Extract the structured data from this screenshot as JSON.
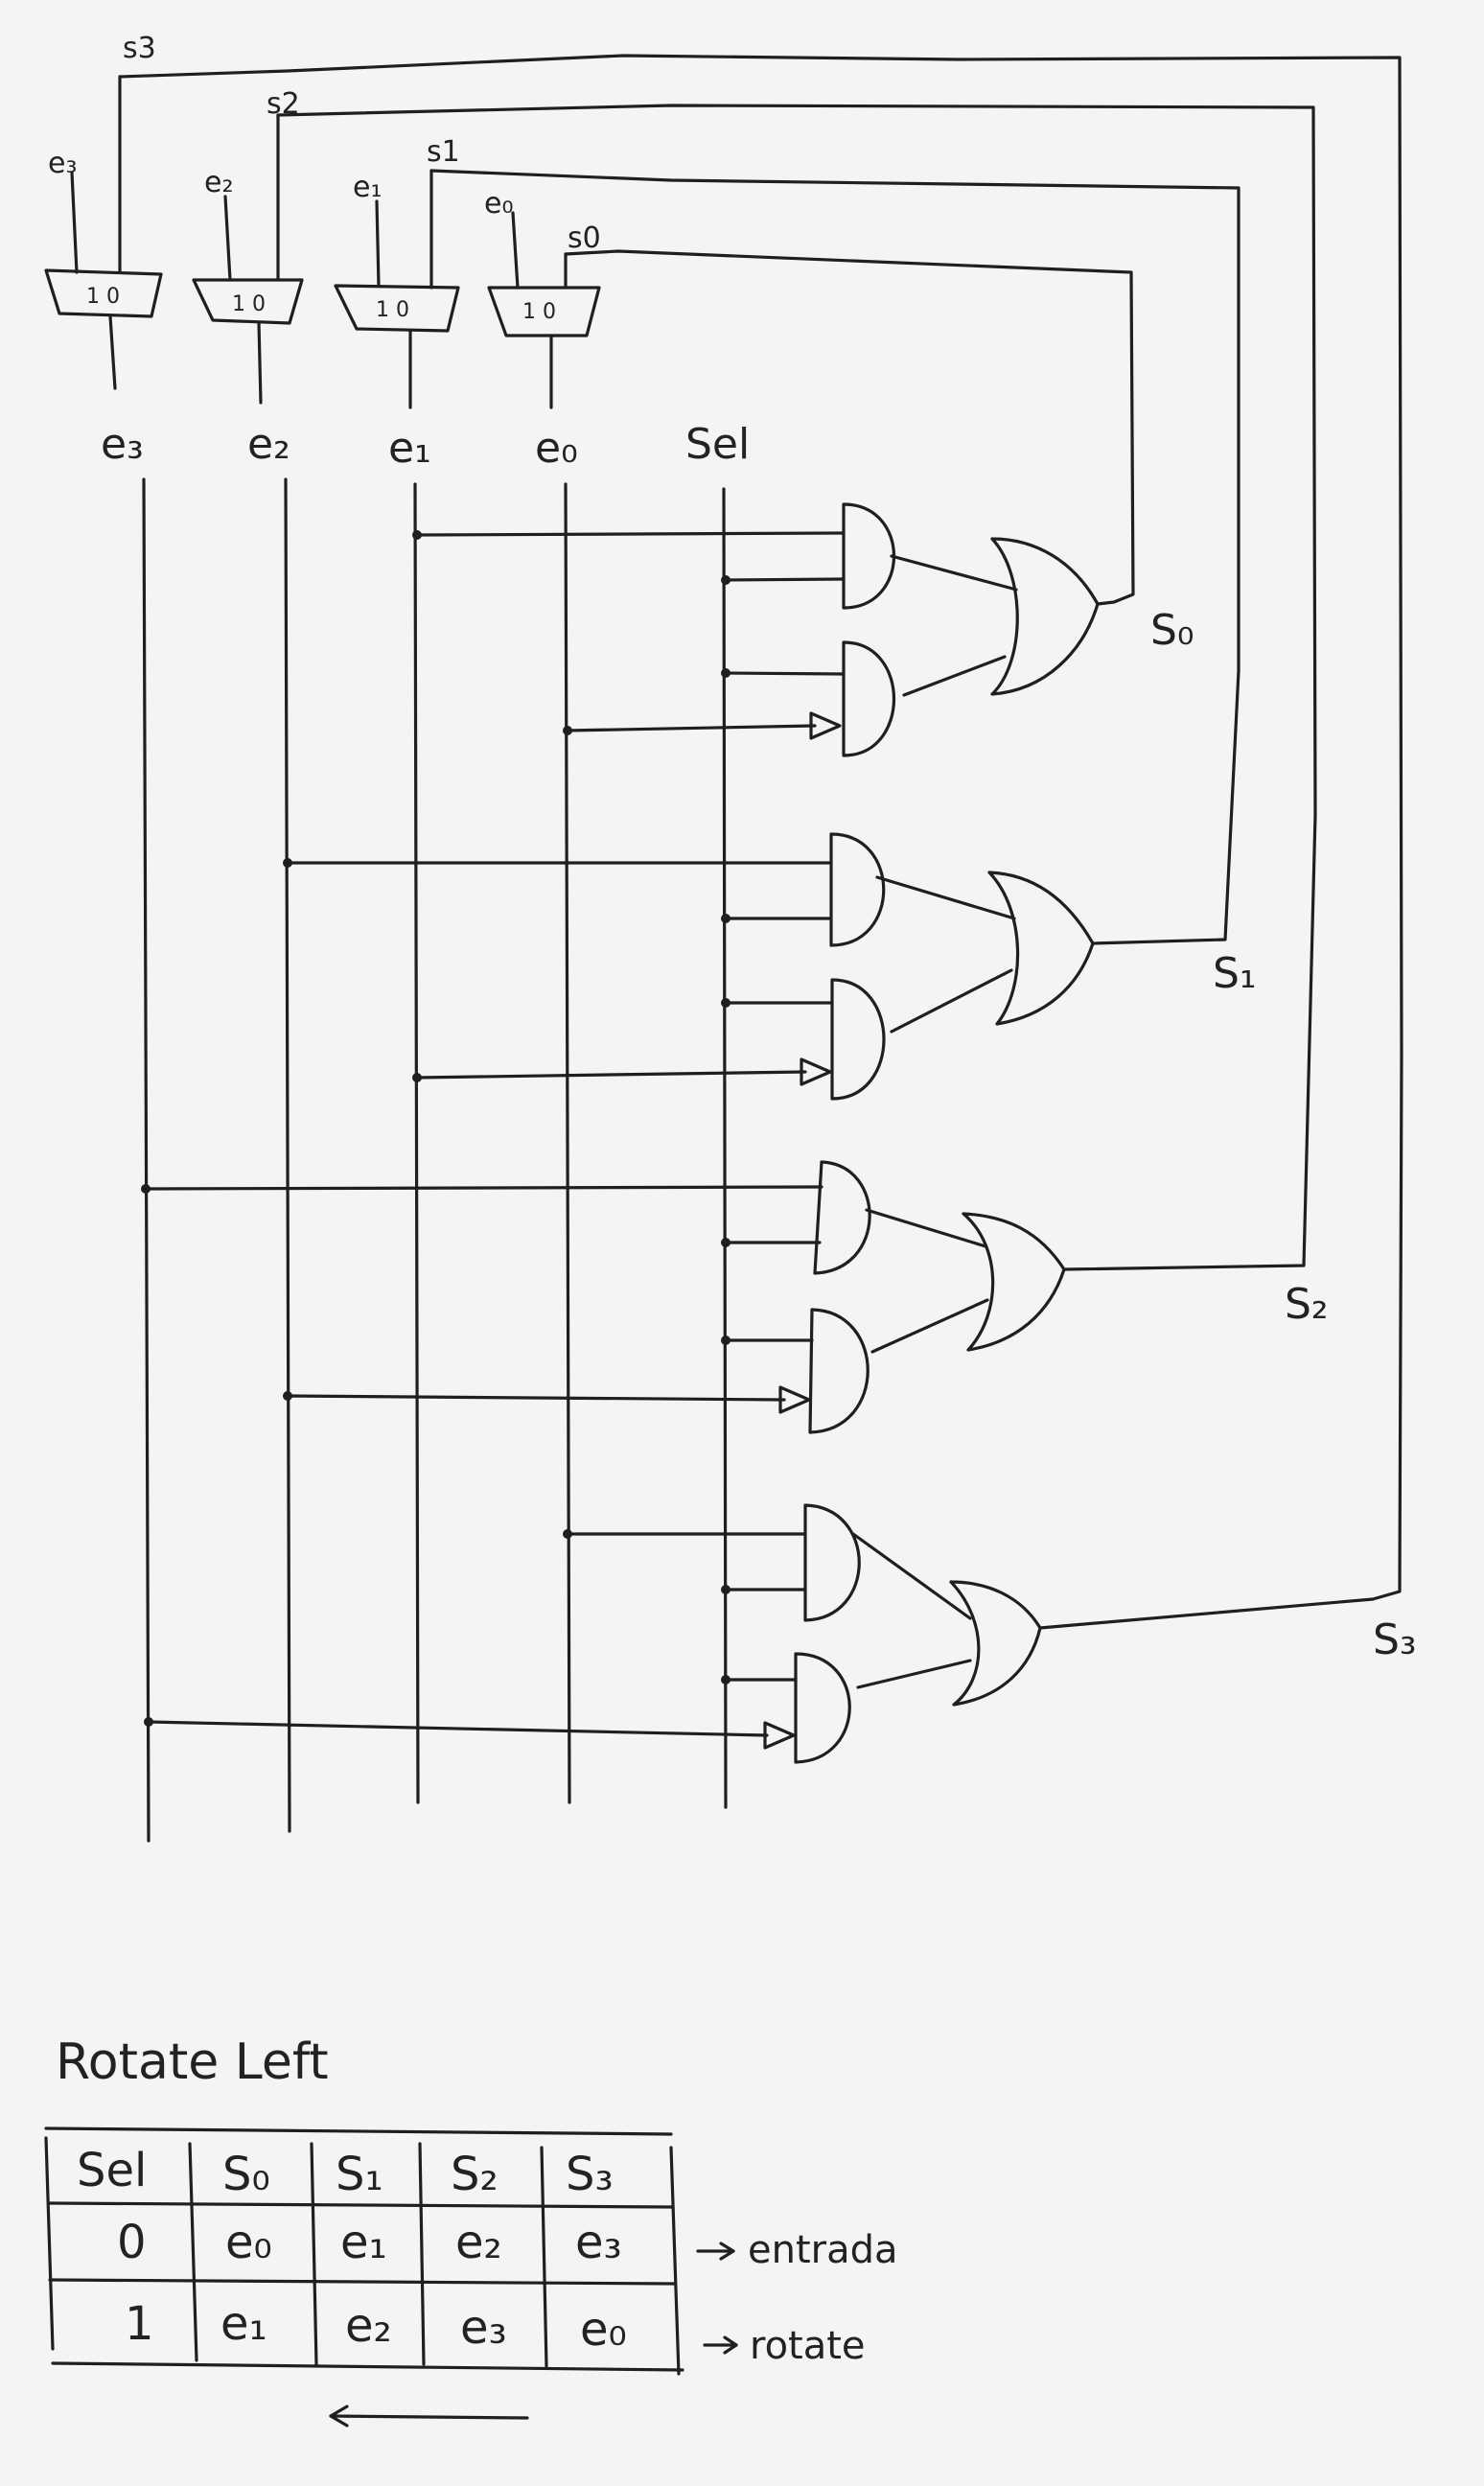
{
  "mux_labels": {
    "inputs_top": [
      "e₃",
      "e₂",
      "e₁",
      "e₀"
    ],
    "feedback_top": [
      "s3",
      "s2",
      "s1",
      "s0"
    ],
    "mux_pins": [
      "1 0",
      "1 0",
      "1 0",
      "1 0"
    ],
    "outputs": [
      "e₃",
      "e₂",
      "e₁",
      "e₀"
    ],
    "sel": "Sel"
  },
  "gate_outputs": [
    "S₀",
    "S₁",
    "S₂",
    "S₃"
  ],
  "table": {
    "title": "Rotate Left",
    "headers": [
      "Sel",
      "S₀",
      "S₁",
      "S₂",
      "S₃"
    ],
    "rows": [
      [
        "0",
        "e₀",
        "e₁",
        "e₂",
        "e₃"
      ],
      [
        "1",
        "e₁",
        "e₂",
        "e₃",
        "e₀"
      ]
    ],
    "row_notes": [
      "entrada",
      "rotate"
    ]
  }
}
